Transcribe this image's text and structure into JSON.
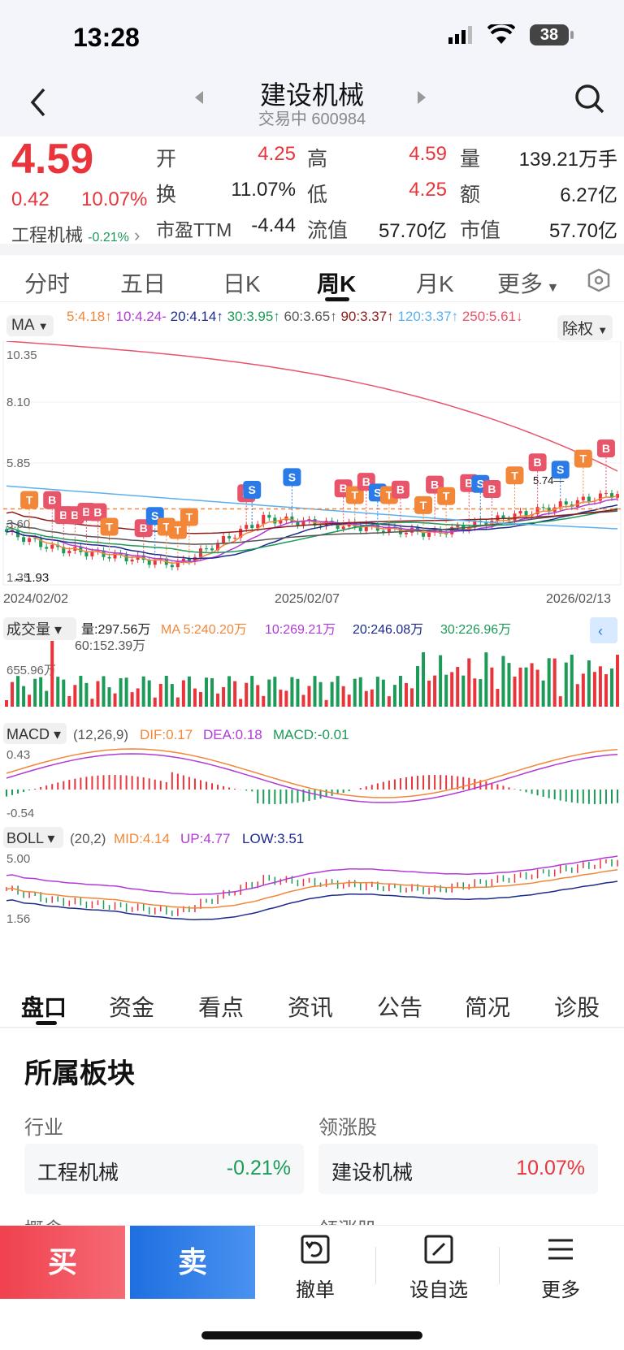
{
  "status": {
    "time": "13:28",
    "battery": "38"
  },
  "header": {
    "name": "建设机械",
    "sub": "交易中 600984"
  },
  "quote": {
    "price": "4.59",
    "change": "0.42",
    "pct": "10.07%",
    "sector": "工程机械",
    "sector_pct": "-0.21%",
    "open_l": "开",
    "open": "4.25",
    "high_l": "高",
    "high": "4.59",
    "vol_l": "量",
    "vol": "139.21万手",
    "turn_l": "换",
    "turn": "11.07%",
    "low_l": "低",
    "low": "4.25",
    "amt_l": "额",
    "amt": "6.27亿",
    "pe_l": "市盈TTM",
    "pe": "-4.44",
    "float_l": "流值",
    "float": "57.70亿",
    "mcap_l": "市值",
    "mcap": "57.70亿"
  },
  "tabs": [
    "分时",
    "五日",
    "日K",
    "周K",
    "月K",
    "更多"
  ],
  "active_tab": "周K",
  "ma": {
    "label": "MA",
    "items": [
      {
        "t": "5:4.18↑",
        "c": "#f2873a"
      },
      {
        "t": "10:4.24-",
        "c": "#b23ad6"
      },
      {
        "t": "20:4.14↑",
        "c": "#1c2a8a"
      },
      {
        "t": "30:3.95↑",
        "c": "#1c9a58"
      },
      {
        "t": "60:3.65↑",
        "c": "#555555"
      },
      {
        "t": "90:3.37↑",
        "c": "#8b1c1c"
      },
      {
        "t": "120:3.37↑",
        "c": "#5ab0f0"
      },
      {
        "t": "250:5.61↓",
        "c": "#e8546a"
      }
    ],
    "adjust": "除权"
  },
  "price_axis": {
    "top": "10.35",
    "l2": "8.10",
    "l3": "5.85",
    "l4": "3.60",
    "bottom": "1.35",
    "min_mark": "1.93",
    "max_mark": "5.74"
  },
  "dates": [
    "2024/02/02",
    "2025/02/07",
    "2026/02/13"
  ],
  "volume": {
    "label": "成交量",
    "items": [
      {
        "t": "量:297.56万",
        "c": "#222"
      },
      {
        "t": "MA 5:240.20万",
        "c": "#f2873a"
      },
      {
        "t": "10:269.21万",
        "c": "#b23ad6"
      },
      {
        "t": "20:246.08万",
        "c": "#1c2a8a"
      },
      {
        "t": "30:226.96万",
        "c": "#1c9a58"
      },
      {
        "t": "60:152.39万",
        "c": "#555555"
      }
    ],
    "max": "655.96万"
  },
  "macd": {
    "label": "MACD",
    "params": "(12,26,9)",
    "dif": "DIF:0.17",
    "dea": "DEA:0.18",
    "macd": "MACD:-0.01",
    "top": "0.43",
    "bottom": "-0.54"
  },
  "boll": {
    "label": "BOLL",
    "params": "(20,2)",
    "mid": "MID:4.14",
    "up": "UP:4.77",
    "low": "LOW:3.51",
    "top": "5.00",
    "bottom": "1.56"
  },
  "bottom_tabs": [
    "盘口",
    "资金",
    "看点",
    "资讯",
    "公告",
    "简况",
    "诊股"
  ],
  "sector_card": {
    "title": "所属板块",
    "industry_l": "行业",
    "leader_l": "领涨股",
    "industry": "工程机械",
    "industry_pct": "-0.21%",
    "leader": "建设机械",
    "leader_pct": "10.07%",
    "concept_l": "概念",
    "leader_l2": "领涨股"
  },
  "toolbar": {
    "buy": "买",
    "sell": "卖",
    "cancel": "撤单",
    "watch": "设自选",
    "more": "更多"
  },
  "colors": {
    "up": "#e8343a",
    "down": "#1c9a58",
    "buy": "#f04650",
    "sell": "#2a7be8"
  }
}
